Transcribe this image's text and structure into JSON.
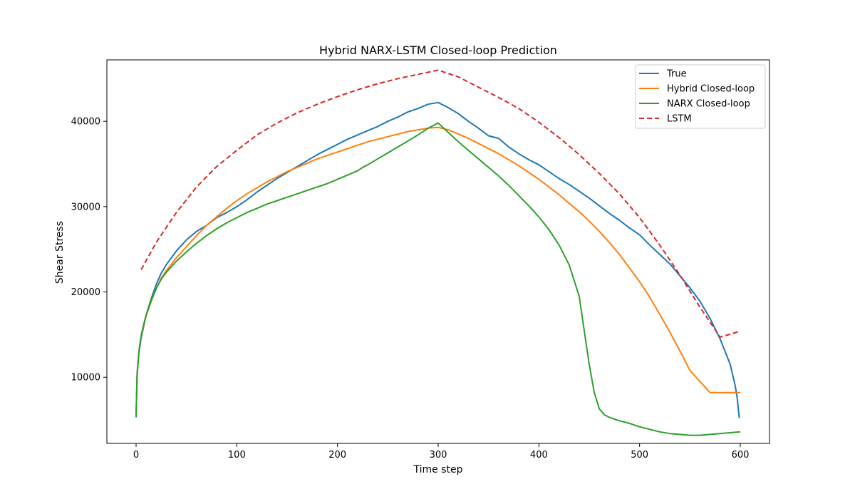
{
  "chart_data": {
    "type": "line",
    "title": "Hybrid NARX-LSTM Closed-loop Prediction",
    "xlabel": "Time step",
    "ylabel": "Shear Stress",
    "xlim": [
      -29,
      629
    ],
    "ylim": [
      2250,
      47200
    ],
    "xticks": [
      0,
      100,
      200,
      300,
      400,
      500,
      600
    ],
    "yticks": [
      10000,
      20000,
      30000,
      40000
    ],
    "grid": false,
    "legend_position": "top-right",
    "series": [
      {
        "name": "True",
        "color": "#1f77b4",
        "dash": "solid",
        "x": [
          0,
          1,
          2,
          3,
          5,
          8,
          10,
          15,
          20,
          25,
          30,
          40,
          50,
          60,
          70,
          80,
          90,
          100,
          110,
          120,
          130,
          140,
          150,
          160,
          170,
          180,
          190,
          200,
          210,
          220,
          230,
          240,
          250,
          260,
          270,
          280,
          290,
          300,
          310,
          320,
          330,
          340,
          350,
          360,
          370,
          380,
          390,
          400,
          410,
          420,
          430,
          440,
          450,
          460,
          470,
          480,
          490,
          500,
          510,
          520,
          530,
          540,
          550,
          560,
          570,
          580,
          590,
          595,
          597,
          598,
          599
        ],
        "y": [
          5300,
          10500,
          11800,
          13000,
          14600,
          16200,
          17300,
          19200,
          20900,
          22200,
          23200,
          24800,
          26100,
          27100,
          27800,
          28700,
          29300,
          30000,
          30800,
          31700,
          32500,
          33300,
          34000,
          34700,
          35400,
          36100,
          36700,
          37300,
          37900,
          38400,
          38900,
          39400,
          40000,
          40500,
          41100,
          41500,
          42000,
          42200,
          41600,
          40900,
          40000,
          39200,
          38300,
          38000,
          37000,
          36200,
          35500,
          34900,
          34100,
          33300,
          32600,
          31800,
          31000,
          30100,
          29200,
          28400,
          27500,
          26700,
          25500,
          24400,
          23300,
          21900,
          20500,
          18900,
          16900,
          14500,
          11500,
          9000,
          7500,
          6300,
          5200
        ]
      },
      {
        "name": "Hybrid Closed-loop",
        "color": "#ff7f0e",
        "dash": "solid",
        "x": [
          0,
          1,
          2,
          3,
          5,
          8,
          10,
          15,
          20,
          25,
          30,
          40,
          50,
          60,
          70,
          80,
          90,
          100,
          110,
          120,
          130,
          140,
          150,
          160,
          170,
          180,
          190,
          200,
          210,
          220,
          230,
          240,
          250,
          260,
          270,
          280,
          290,
          300,
          310,
          320,
          330,
          340,
          350,
          360,
          370,
          380,
          390,
          400,
          410,
          420,
          430,
          440,
          450,
          460,
          470,
          480,
          490,
          500,
          510,
          520,
          530,
          540,
          550,
          560,
          570,
          580,
          590,
          595,
          600
        ],
        "y": [
          5600,
          10200,
          11700,
          13200,
          14800,
          16300,
          17200,
          18900,
          20400,
          21600,
          22500,
          24000,
          25300,
          26600,
          27800,
          28800,
          29800,
          30700,
          31500,
          32200,
          32900,
          33500,
          34100,
          34600,
          35100,
          35600,
          36000,
          36400,
          36800,
          37200,
          37600,
          37900,
          38200,
          38500,
          38800,
          39000,
          39200,
          39300,
          39000,
          38500,
          38000,
          37400,
          36800,
          36200,
          35500,
          34800,
          34000,
          33200,
          32300,
          31400,
          30400,
          29400,
          28300,
          27100,
          25800,
          24400,
          22800,
          21200,
          19400,
          17400,
          15300,
          13100,
          10800,
          9500,
          8200,
          8200,
          8200,
          8200,
          8200
        ]
      },
      {
        "name": "NARX Closed-loop",
        "color": "#2ca02c",
        "dash": "solid",
        "x": [
          0,
          1,
          2,
          3,
          5,
          8,
          10,
          15,
          20,
          25,
          30,
          40,
          50,
          60,
          70,
          80,
          90,
          100,
          110,
          120,
          130,
          140,
          150,
          160,
          170,
          180,
          190,
          200,
          210,
          220,
          225,
          230,
          240,
          250,
          260,
          270,
          280,
          290,
          300,
          310,
          320,
          330,
          340,
          350,
          360,
          370,
          380,
          390,
          400,
          410,
          420,
          430,
          440,
          445,
          450,
          455,
          460,
          465,
          470,
          475,
          480,
          490,
          500,
          510,
          520,
          530,
          540,
          550,
          560,
          570,
          580,
          590,
          600
        ],
        "y": [
          5400,
          10100,
          11700,
          13200,
          14900,
          16400,
          17300,
          19000,
          20400,
          21500,
          22300,
          23600,
          24700,
          25700,
          26600,
          27400,
          28100,
          28700,
          29300,
          29800,
          30300,
          30700,
          31100,
          31500,
          31900,
          32300,
          32700,
          33200,
          33700,
          34200,
          34600,
          34900,
          35600,
          36300,
          37000,
          37700,
          38400,
          39200,
          39800,
          38700,
          37600,
          36600,
          35600,
          34600,
          33600,
          32500,
          31300,
          30100,
          28800,
          27300,
          25500,
          23200,
          19500,
          15500,
          11500,
          8200,
          6300,
          5600,
          5300,
          5100,
          4900,
          4600,
          4200,
          3900,
          3600,
          3400,
          3300,
          3200,
          3200,
          3300,
          3400,
          3500,
          3600
        ]
      },
      {
        "name": "LSTM",
        "color": "#d62728",
        "dash": "dashed",
        "x": [
          5,
          20,
          40,
          60,
          80,
          100,
          120,
          140,
          160,
          180,
          200,
          220,
          240,
          260,
          280,
          300,
          320,
          340,
          360,
          380,
          400,
          420,
          440,
          460,
          480,
          500,
          520,
          540,
          560,
          580,
          600
        ],
        "y": [
          22600,
          25800,
          29300,
          32300,
          34700,
          36600,
          38400,
          39800,
          41000,
          42000,
          42900,
          43700,
          44400,
          45000,
          45500,
          46000,
          45200,
          44000,
          42800,
          41500,
          39900,
          38100,
          36100,
          33900,
          31500,
          28700,
          25500,
          22000,
          18200,
          14700,
          15400
        ]
      }
    ]
  }
}
